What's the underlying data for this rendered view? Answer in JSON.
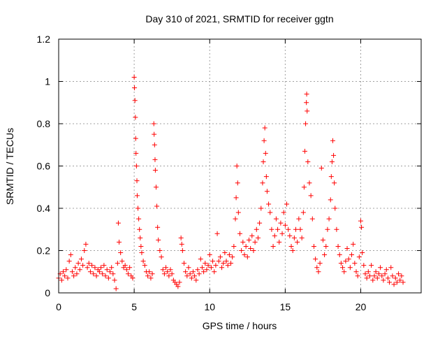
{
  "chart_data": {
    "type": "scatter",
    "title": "Day 310 of 2021, SRMTID for receiver ggtn",
    "xlabel": "GPS time / hours",
    "ylabel": "SRMTID / TECUs",
    "xlim": [
      0,
      24
    ],
    "ylim": [
      0,
      1.2
    ],
    "xticks": [
      0,
      5,
      10,
      15,
      20
    ],
    "yticks": [
      0,
      0.2,
      0.4,
      0.6,
      0.8,
      1,
      1.2
    ],
    "xtick_labels": [
      "0",
      "5",
      "10",
      "15",
      "20"
    ],
    "ytick_labels": [
      "0",
      "0.2",
      "0.4",
      "0.6",
      "0.8",
      "1",
      "1.2"
    ],
    "grid": true,
    "marker": "+",
    "color": "#ff0000",
    "series": [
      {
        "name": "SRMTID",
        "points": [
          [
            0.0,
            0.07
          ],
          [
            0.1,
            0.09
          ],
          [
            0.2,
            0.06
          ],
          [
            0.3,
            0.1
          ],
          [
            0.4,
            0.08
          ],
          [
            0.5,
            0.11
          ],
          [
            0.6,
            0.07
          ],
          [
            0.7,
            0.15
          ],
          [
            0.8,
            0.18
          ],
          [
            0.9,
            0.1
          ],
          [
            1.0,
            0.08
          ],
          [
            1.1,
            0.12
          ],
          [
            1.2,
            0.09
          ],
          [
            1.3,
            0.14
          ],
          [
            1.4,
            0.11
          ],
          [
            1.5,
            0.16
          ],
          [
            1.6,
            0.13
          ],
          [
            1.7,
            0.2
          ],
          [
            1.8,
            0.23
          ],
          [
            1.9,
            0.12
          ],
          [
            2.0,
            0.14
          ],
          [
            2.1,
            0.1
          ],
          [
            2.2,
            0.13
          ],
          [
            2.3,
            0.09
          ],
          [
            2.4,
            0.12
          ],
          [
            2.5,
            0.08
          ],
          [
            2.6,
            0.11
          ],
          [
            2.7,
            0.1
          ],
          [
            2.8,
            0.12
          ],
          [
            2.9,
            0.09
          ],
          [
            3.0,
            0.13
          ],
          [
            3.1,
            0.08
          ],
          [
            3.2,
            0.11
          ],
          [
            3.3,
            0.07
          ],
          [
            3.4,
            0.1
          ],
          [
            3.5,
            0.12
          ],
          [
            3.6,
            0.09
          ],
          [
            3.7,
            0.06
          ],
          [
            3.8,
            0.02
          ],
          [
            3.9,
            0.14
          ],
          [
            3.95,
            0.33
          ],
          [
            4.0,
            0.24
          ],
          [
            4.1,
            0.19
          ],
          [
            4.2,
            0.15
          ],
          [
            4.3,
            0.12
          ],
          [
            4.4,
            0.13
          ],
          [
            4.5,
            0.11
          ],
          [
            4.6,
            0.09
          ],
          [
            4.7,
            0.12
          ],
          [
            4.8,
            0.08
          ],
          [
            4.9,
            0.07
          ],
          [
            5.0,
            1.02
          ],
          [
            5.02,
            0.97
          ],
          [
            5.05,
            0.91
          ],
          [
            5.08,
            0.83
          ],
          [
            5.1,
            0.73
          ],
          [
            5.12,
            0.66
          ],
          [
            5.15,
            0.6
          ],
          [
            5.18,
            0.53
          ],
          [
            5.2,
            0.46
          ],
          [
            5.25,
            0.4
          ],
          [
            5.3,
            0.35
          ],
          [
            5.35,
            0.3
          ],
          [
            5.4,
            0.26
          ],
          [
            5.45,
            0.22
          ],
          [
            5.5,
            0.19
          ],
          [
            5.6,
            0.15
          ],
          [
            5.7,
            0.13
          ],
          [
            5.8,
            0.1
          ],
          [
            5.9,
            0.08
          ],
          [
            6.0,
            0.1
          ],
          [
            6.1,
            0.07
          ],
          [
            6.2,
            0.09
          ],
          [
            6.3,
            0.8
          ],
          [
            6.32,
            0.75
          ],
          [
            6.35,
            0.7
          ],
          [
            6.38,
            0.63
          ],
          [
            6.4,
            0.58
          ],
          [
            6.45,
            0.5
          ],
          [
            6.5,
            0.41
          ],
          [
            6.55,
            0.31
          ],
          [
            6.6,
            0.25
          ],
          [
            6.7,
            0.2
          ],
          [
            6.8,
            0.17
          ],
          [
            6.9,
            0.11
          ],
          [
            7.0,
            0.09
          ],
          [
            7.1,
            0.12
          ],
          [
            7.2,
            0.1
          ],
          [
            7.3,
            0.08
          ],
          [
            7.4,
            0.11
          ],
          [
            7.5,
            0.09
          ],
          [
            7.6,
            0.06
          ],
          [
            7.7,
            0.05
          ],
          [
            7.8,
            0.04
          ],
          [
            7.9,
            0.03
          ],
          [
            8.0,
            0.05
          ],
          [
            8.1,
            0.26
          ],
          [
            8.15,
            0.23
          ],
          [
            8.2,
            0.2
          ],
          [
            8.3,
            0.14
          ],
          [
            8.4,
            0.1
          ],
          [
            8.5,
            0.08
          ],
          [
            8.6,
            0.12
          ],
          [
            8.7,
            0.09
          ],
          [
            8.8,
            0.07
          ],
          [
            8.9,
            0.1
          ],
          [
            9.0,
            0.08
          ],
          [
            9.1,
            0.06
          ],
          [
            9.2,
            0.11
          ],
          [
            9.3,
            0.09
          ],
          [
            9.4,
            0.16
          ],
          [
            9.5,
            0.12
          ],
          [
            9.6,
            0.1
          ],
          [
            9.7,
            0.14
          ],
          [
            9.8,
            0.11
          ],
          [
            9.9,
            0.13
          ],
          [
            10.0,
            0.18
          ],
          [
            10.1,
            0.12
          ],
          [
            10.2,
            0.15
          ],
          [
            10.3,
            0.1
          ],
          [
            10.4,
            0.13
          ],
          [
            10.5,
            0.28
          ],
          [
            10.6,
            0.15
          ],
          [
            10.7,
            0.17
          ],
          [
            10.8,
            0.12
          ],
          [
            10.9,
            0.14
          ],
          [
            11.0,
            0.19
          ],
          [
            11.1,
            0.15
          ],
          [
            11.2,
            0.13
          ],
          [
            11.3,
            0.18
          ],
          [
            11.4,
            0.14
          ],
          [
            11.5,
            0.17
          ],
          [
            11.6,
            0.22
          ],
          [
            11.7,
            0.35
          ],
          [
            11.75,
            0.45
          ],
          [
            11.8,
            0.6
          ],
          [
            11.85,
            0.52
          ],
          [
            11.9,
            0.38
          ],
          [
            12.0,
            0.28
          ],
          [
            12.1,
            0.2
          ],
          [
            12.2,
            0.24
          ],
          [
            12.3,
            0.18
          ],
          [
            12.4,
            0.22
          ],
          [
            12.5,
            0.17
          ],
          [
            12.6,
            0.25
          ],
          [
            12.7,
            0.21
          ],
          [
            12.8,
            0.27
          ],
          [
            12.9,
            0.2
          ],
          [
            13.0,
            0.24
          ],
          [
            13.1,
            0.3
          ],
          [
            13.2,
            0.26
          ],
          [
            13.3,
            0.33
          ],
          [
            13.4,
            0.4
          ],
          [
            13.5,
            0.52
          ],
          [
            13.55,
            0.62
          ],
          [
            13.6,
            0.72
          ],
          [
            13.65,
            0.78
          ],
          [
            13.7,
            0.66
          ],
          [
            13.75,
            0.55
          ],
          [
            13.8,
            0.48
          ],
          [
            13.9,
            0.42
          ],
          [
            14.0,
            0.38
          ],
          [
            14.1,
            0.3
          ],
          [
            14.2,
            0.22
          ],
          [
            14.3,
            0.27
          ],
          [
            14.4,
            0.35
          ],
          [
            14.5,
            0.3
          ],
          [
            14.6,
            0.24
          ],
          [
            14.7,
            0.33
          ],
          [
            14.8,
            0.28
          ],
          [
            14.9,
            0.38
          ],
          [
            15.0,
            0.32
          ],
          [
            15.1,
            0.42
          ],
          [
            15.2,
            0.3
          ],
          [
            15.3,
            0.27
          ],
          [
            15.4,
            0.22
          ],
          [
            15.5,
            0.2
          ],
          [
            15.6,
            0.26
          ],
          [
            15.7,
            0.3
          ],
          [
            15.8,
            0.24
          ],
          [
            15.9,
            0.35
          ],
          [
            16.0,
            0.3
          ],
          [
            16.1,
            0.26
          ],
          [
            16.2,
            0.38
          ],
          [
            16.25,
            0.5
          ],
          [
            16.3,
            0.67
          ],
          [
            16.35,
            0.8
          ],
          [
            16.4,
            0.9
          ],
          [
            16.42,
            0.94
          ],
          [
            16.45,
            0.86
          ],
          [
            16.5,
            0.62
          ],
          [
            16.6,
            0.52
          ],
          [
            16.7,
            0.46
          ],
          [
            16.8,
            0.35
          ],
          [
            16.9,
            0.22
          ],
          [
            17.0,
            0.16
          ],
          [
            17.1,
            0.12
          ],
          [
            17.2,
            0.1
          ],
          [
            17.3,
            0.14
          ],
          [
            17.4,
            0.59
          ],
          [
            17.5,
            0.25
          ],
          [
            17.6,
            0.18
          ],
          [
            17.7,
            0.22
          ],
          [
            17.8,
            0.3
          ],
          [
            17.9,
            0.35
          ],
          [
            18.0,
            0.44
          ],
          [
            18.05,
            0.55
          ],
          [
            18.1,
            0.62
          ],
          [
            18.15,
            0.72
          ],
          [
            18.2,
            0.65
          ],
          [
            18.25,
            0.52
          ],
          [
            18.3,
            0.4
          ],
          [
            18.4,
            0.3
          ],
          [
            18.5,
            0.22
          ],
          [
            18.6,
            0.18
          ],
          [
            18.7,
            0.14
          ],
          [
            18.8,
            0.12
          ],
          [
            18.9,
            0.1
          ],
          [
            19.0,
            0.15
          ],
          [
            19.1,
            0.21
          ],
          [
            19.2,
            0.16
          ],
          [
            19.3,
            0.12
          ],
          [
            19.4,
            0.18
          ],
          [
            19.5,
            0.23
          ],
          [
            19.6,
            0.14
          ],
          [
            19.7,
            0.1
          ],
          [
            19.8,
            0.08
          ],
          [
            19.9,
            0.17
          ],
          [
            20.0,
            0.34
          ],
          [
            20.05,
            0.31
          ],
          [
            20.1,
            0.19
          ],
          [
            20.2,
            0.13
          ],
          [
            20.3,
            0.09
          ],
          [
            20.4,
            0.07
          ],
          [
            20.5,
            0.1
          ],
          [
            20.6,
            0.08
          ],
          [
            20.7,
            0.13
          ],
          [
            20.8,
            0.06
          ],
          [
            20.9,
            0.08
          ],
          [
            21.0,
            0.1
          ],
          [
            21.1,
            0.07
          ],
          [
            21.2,
            0.09
          ],
          [
            21.3,
            0.12
          ],
          [
            21.4,
            0.08
          ],
          [
            21.5,
            0.06
          ],
          [
            21.6,
            0.09
          ],
          [
            21.7,
            0.11
          ],
          [
            21.8,
            0.07
          ],
          [
            21.9,
            0.05
          ],
          [
            22.0,
            0.12
          ],
          [
            22.1,
            0.08
          ],
          [
            22.2,
            0.04
          ],
          [
            22.3,
            0.07
          ],
          [
            22.4,
            0.05
          ],
          [
            22.5,
            0.09
          ],
          [
            22.6,
            0.06
          ],
          [
            22.7,
            0.08
          ],
          [
            22.8,
            0.05
          ]
        ]
      }
    ]
  }
}
